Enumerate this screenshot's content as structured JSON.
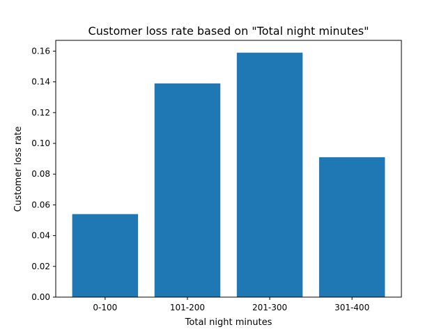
{
  "chart_data": {
    "type": "bar",
    "title": "Customer loss rate based on \"Total night minutes\"",
    "xlabel": "Total night minutes",
    "ylabel": "Customer loss rate",
    "categories": [
      "0-100",
      "101-200",
      "201-300",
      "301-400"
    ],
    "values": [
      0.054,
      0.139,
      0.159,
      0.091
    ],
    "ylim": [
      0,
      0.167
    ],
    "yticks": [
      "0.00",
      "0.02",
      "0.04",
      "0.06",
      "0.08",
      "0.10",
      "0.12",
      "0.14",
      "0.16"
    ],
    "grid": false,
    "legend": "none",
    "bar_color": "#1f77b4"
  }
}
